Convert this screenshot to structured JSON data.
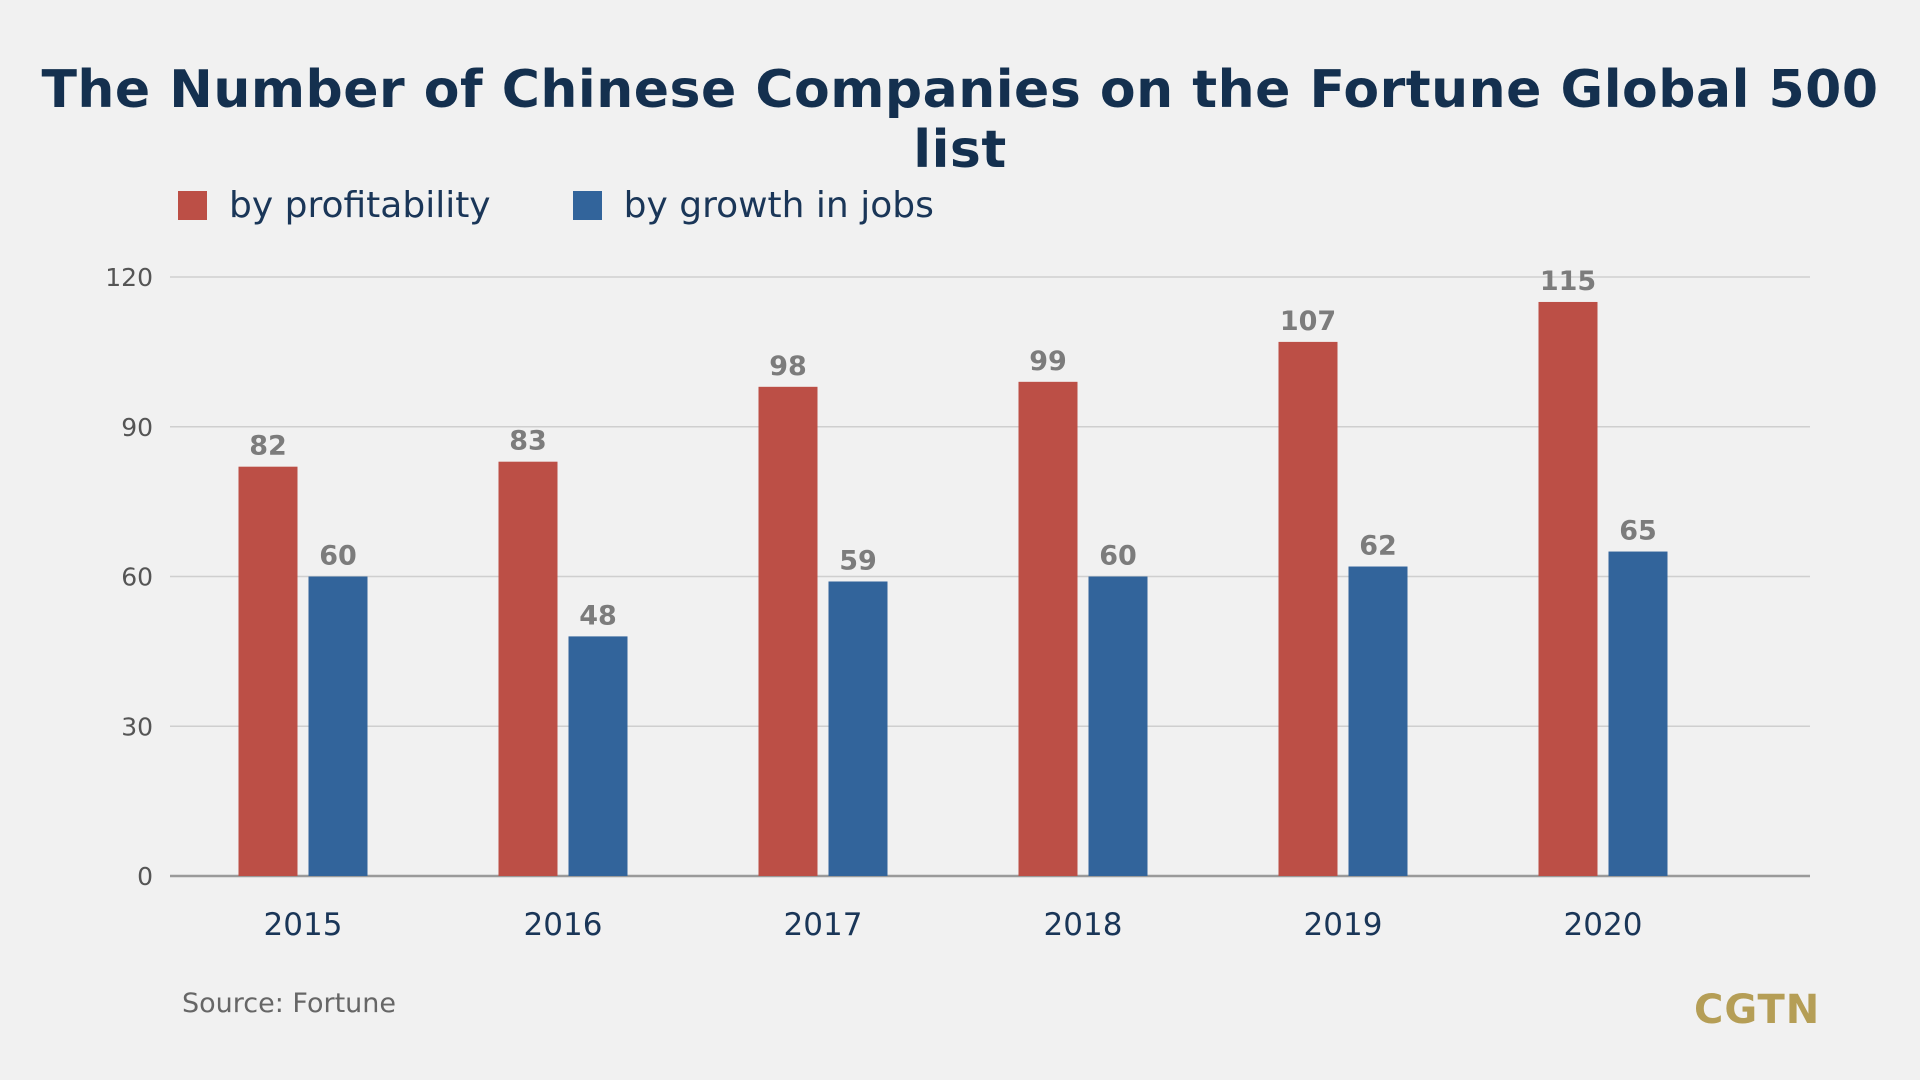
{
  "title": "The Number of Chinese Companies on the Fortune Global 500 list",
  "source": "Source: Fortune",
  "logo": "CGTN",
  "colors": {
    "background": "#f1f1f1",
    "title": "#14304f",
    "profitability": "#bc4f46",
    "jobs": "#32649b",
    "logo": "#b59e56"
  },
  "chart_data": {
    "type": "bar",
    "title": "The Number of Chinese Companies on the Fortune Global 500 list",
    "xlabel": "",
    "ylabel": "",
    "ylim": [
      0,
      120
    ],
    "yticks": [
      "0",
      "30",
      "60",
      "90",
      "120"
    ],
    "grid": true,
    "legend_position": "top-left",
    "categories": [
      "2015",
      "2016",
      "2017",
      "2018",
      "2019",
      "2020"
    ],
    "series": [
      {
        "name": "by profitability",
        "color": "#bc4f46",
        "values": [
          82,
          83,
          98,
          99,
          107,
          115
        ]
      },
      {
        "name": "by growth in jobs",
        "color": "#32649b",
        "values": [
          60,
          48,
          59,
          60,
          62,
          65
        ]
      }
    ]
  }
}
